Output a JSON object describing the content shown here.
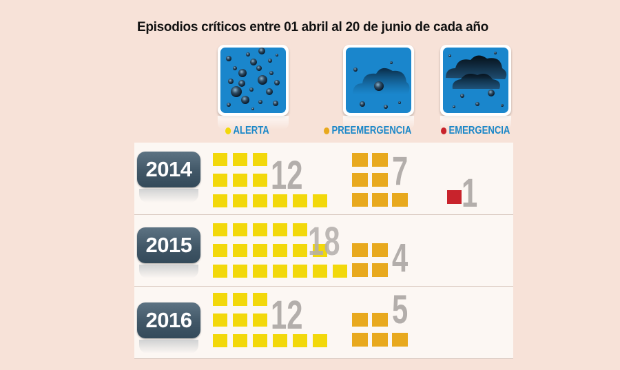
{
  "chart_data": {
    "type": "pictogram",
    "title": "Episodios críticos entre 01 abril al 20 de junio de cada año",
    "categories": [
      "ALERTA",
      "PREEMERGENCIA",
      "EMERGENCIA"
    ],
    "x": [
      "2014",
      "2015",
      "2016"
    ],
    "series": [
      {
        "name": "ALERTA",
        "values": [
          12,
          18,
          12
        ],
        "color": "#f2d80b"
      },
      {
        "name": "PREEMERGENCIA",
        "values": [
          7,
          4,
          5
        ],
        "color": "#e8a91e"
      },
      {
        "name": "EMERGENCIA",
        "values": [
          1,
          0,
          0
        ],
        "color": "#c8232c"
      }
    ]
  },
  "legend": {
    "alerta": "ALERTA",
    "preemergencia": "PREEMERGENCIA",
    "emergencia": "EMERGENCIA"
  },
  "icons": [
    "particles-icon",
    "smog-cloud-icon",
    "dark-smog-cloud-icon"
  ],
  "colors": {
    "label_blue": "#1a87c8",
    "icon_blue": "#1a86cc",
    "count_gray": "#b3aeab",
    "alerta_dot": "#f2d80b",
    "preemergencia_dot": "#e8a91e",
    "emergencia_dot": "#c8232c"
  }
}
